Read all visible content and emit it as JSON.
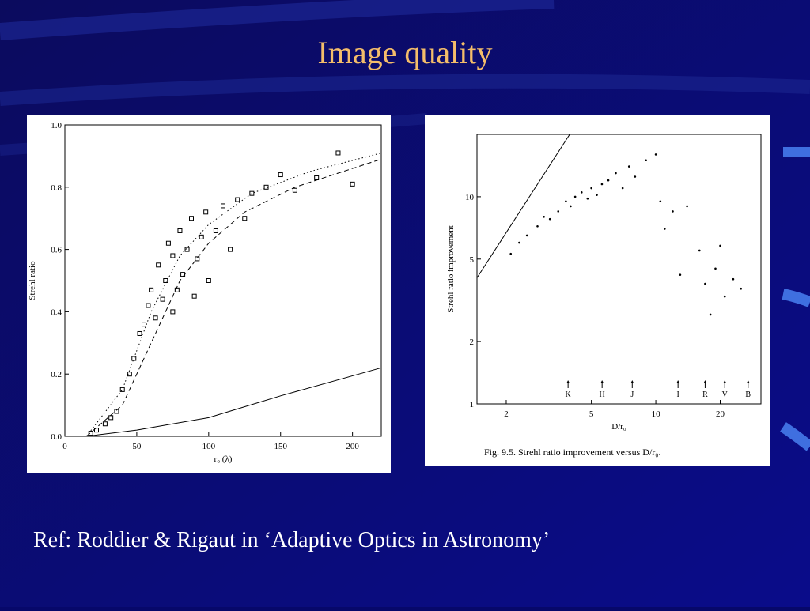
{
  "title": "Image quality",
  "reference": "Ref: Roddier & Rigaut in ‘Adaptive Optics in Astronomy’",
  "chart_data": [
    {
      "type": "scatter",
      "x_label": "r₀ (λ)",
      "y_label": "Strehl ratio",
      "xlim": [
        0,
        220
      ],
      "ylim": [
        0,
        1.0
      ],
      "xticks": [
        0,
        50,
        100,
        150,
        200
      ],
      "yticks": [
        {
          "value": 0,
          "label": "0.0"
        },
        0.2,
        0.4,
        0.6,
        0.8,
        {
          "value": 1,
          "label": "1.0"
        }
      ],
      "log_x": false,
      "log_y": false,
      "series": [
        {
          "style": "points",
          "marker": "square",
          "color": "#000000",
          "x": [
            18,
            22,
            28,
            32,
            36,
            40,
            45,
            48,
            52,
            55,
            58,
            60,
            63,
            65,
            68,
            70,
            72,
            75,
            75,
            78,
            80,
            82,
            85,
            88,
            90,
            92,
            95,
            98,
            100,
            105,
            110,
            115,
            120,
            125,
            130,
            140,
            150,
            160,
            175,
            190,
            200
          ],
          "values": [
            0.01,
            0.02,
            0.04,
            0.06,
            0.08,
            0.15,
            0.2,
            0.25,
            0.33,
            0.36,
            0.42,
            0.47,
            0.38,
            0.55,
            0.44,
            0.5,
            0.62,
            0.4,
            0.58,
            0.47,
            0.66,
            0.52,
            0.6,
            0.7,
            0.45,
            0.57,
            0.64,
            0.72,
            0.5,
            0.66,
            0.74,
            0.6,
            0.76,
            0.7,
            0.78,
            0.8,
            0.84,
            0.79,
            0.83,
            0.91,
            0.81
          ]
        },
        {
          "style": "solid",
          "color": "#000000",
          "x": [
            15,
            50,
            100,
            150,
            220
          ],
          "values": [
            0,
            0.02,
            0.06,
            0.13,
            0.22
          ]
        },
        {
          "style": "dashed",
          "color": "#000000",
          "x": [
            15,
            40,
            60,
            80,
            100,
            125,
            160,
            220
          ],
          "values": [
            0,
            0.1,
            0.3,
            0.5,
            0.62,
            0.72,
            0.8,
            0.89
          ]
        },
        {
          "style": "dotted",
          "color": "#000000",
          "x": [
            15,
            40,
            60,
            80,
            100,
            130,
            170,
            220
          ],
          "values": [
            0,
            0.15,
            0.4,
            0.58,
            0.68,
            0.78,
            0.85,
            0.91
          ]
        }
      ]
    },
    {
      "type": "scatter",
      "x_label": "D/r₀",
      "y_label": "Strehl ratio improvement",
      "caption": "Fig. 9.5. Strehl ratio improvement versus D/r₀.",
      "xlim": [
        1.46,
        31
      ],
      "ylim": [
        1,
        20
      ],
      "xticks": [
        2,
        5,
        10,
        20
      ],
      "yticks": [
        1,
        2,
        5,
        10
      ],
      "log_x": true,
      "log_y": true,
      "series": [
        {
          "style": "points",
          "marker": "dot",
          "color": "#000000",
          "x": [
            2.1,
            2.3,
            2.5,
            2.8,
            3,
            3.2,
            3.5,
            3.8,
            4,
            4.2,
            4.5,
            4.8,
            5,
            5.3,
            5.6,
            6,
            6.5,
            7,
            7.5,
            8,
            9,
            10,
            10.5,
            11,
            12,
            13,
            14,
            16,
            17,
            18,
            19,
            20,
            21,
            23,
            25
          ],
          "values": [
            5.3,
            6,
            6.5,
            7.2,
            8,
            7.8,
            8.5,
            9.5,
            9,
            10,
            10.5,
            9.8,
            11,
            10.2,
            11.5,
            12,
            13,
            11,
            14,
            12.5,
            15,
            16,
            9.5,
            7,
            8.5,
            4.2,
            9,
            5.5,
            3.8,
            2.7,
            4.5,
            5.8,
            3.3,
            4,
            3.6
          ]
        },
        {
          "style": "solid",
          "color": "#000000",
          "x": [
            1.46,
            3.96
          ],
          "values": [
            4.06,
            20
          ]
        }
      ],
      "band_labels": [
        {
          "label": "K",
          "x": 3.89
        },
        {
          "label": "H",
          "x": 5.61
        },
        {
          "label": "J",
          "x": 7.76
        },
        {
          "label": "I",
          "x": 12.7
        },
        {
          "label": "R",
          "x": 17
        },
        {
          "label": "V",
          "x": 21
        },
        {
          "label": "B",
          "x": 27
        }
      ]
    }
  ]
}
